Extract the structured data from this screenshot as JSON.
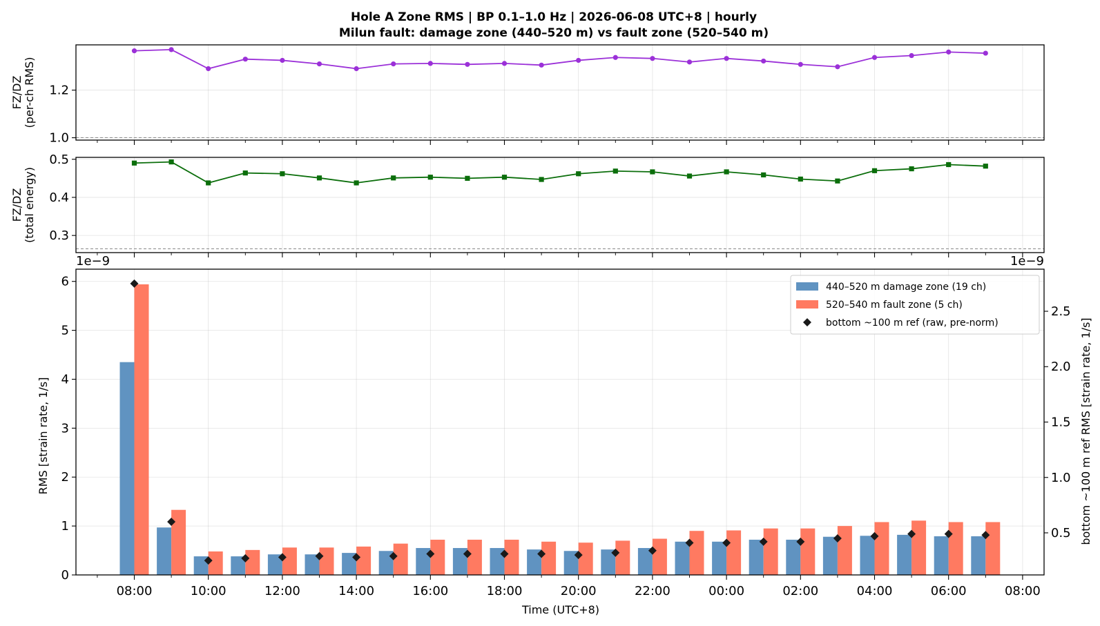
{
  "title_line1": "Hole A Zone RMS  |  BP 0.1–1.0 Hz  |  2026-06-08 UTC+8  |  hourly",
  "title_line2": "Milun fault: damage zone (440–520 m) vs fault zone (520–540 m)",
  "colors": {
    "damage": "#6093c1",
    "fault": "#ff7a61",
    "ref": "#1a1a1a",
    "ratio_rms": "#9b30d8",
    "ratio_energy": "#0b6e0b"
  },
  "chart_data": [
    {
      "type": "line",
      "id": "ratio-rms",
      "ylabel": [
        "FZ/DZ",
        "(per-ch RMS)"
      ],
      "yticks": [
        1.0,
        1.2
      ],
      "ylim": [
        0.99,
        1.39
      ],
      "reference_line": 1.0,
      "grid": true,
      "x": [
        "08:00",
        "09:00",
        "10:00",
        "11:00",
        "12:00",
        "13:00",
        "14:00",
        "15:00",
        "16:00",
        "17:00",
        "18:00",
        "19:00",
        "20:00",
        "21:00",
        "22:00",
        "23:00",
        "00:00",
        "01:00",
        "02:00",
        "03:00",
        "04:00",
        "05:00",
        "06:00",
        "07:00"
      ],
      "values": [
        1.365,
        1.37,
        1.29,
        1.33,
        1.325,
        1.31,
        1.29,
        1.31,
        1.312,
        1.308,
        1.312,
        1.305,
        1.325,
        1.337,
        1.333,
        1.318,
        1.333,
        1.322,
        1.308,
        1.298,
        1.337,
        1.345,
        1.36,
        1.355
      ]
    },
    {
      "type": "line",
      "id": "ratio-energy",
      "ylabel": [
        "FZ/DZ",
        "(total energy)"
      ],
      "yticks": [
        0.3,
        0.4,
        0.5
      ],
      "ylim": [
        0.255,
        0.505
      ],
      "reference_line": 0.265,
      "grid": true,
      "values": [
        0.49,
        0.493,
        0.438,
        0.464,
        0.462,
        0.451,
        0.438,
        0.451,
        0.453,
        0.45,
        0.453,
        0.447,
        0.462,
        0.469,
        0.467,
        0.456,
        0.467,
        0.459,
        0.448,
        0.443,
        0.47,
        0.475,
        0.486,
        0.482
      ]
    },
    {
      "type": "bar",
      "id": "zone-rms",
      "categories": [
        "08:00",
        "09:00",
        "10:00",
        "11:00",
        "12:00",
        "13:00",
        "14:00",
        "15:00",
        "16:00",
        "17:00",
        "18:00",
        "19:00",
        "20:00",
        "21:00",
        "22:00",
        "23:00",
        "00:00",
        "01:00",
        "02:00",
        "03:00",
        "04:00",
        "05:00",
        "06:00",
        "07:00"
      ],
      "xtick_labels": [
        "08:00",
        "10:00",
        "12:00",
        "14:00",
        "16:00",
        "18:00",
        "20:00",
        "22:00",
        "00:00",
        "02:00",
        "04:00",
        "06:00",
        "08:00"
      ],
      "xlabel": "Time (UTC+8)",
      "ylabel": "RMS  [strain rate, 1/s]",
      "ylabel_right": "bottom ~100 m ref RMS  [strain rate, 1/s]",
      "offset_left": "1e−9",
      "offset_right": "1e−9",
      "ylim": [
        0,
        6.25
      ],
      "yticks": [
        0,
        1,
        2,
        3,
        4,
        5,
        6
      ],
      "ylim_right": [
        0.12,
        2.88
      ],
      "yticks_right": [
        0.5,
        1.0,
        1.5,
        2.0,
        2.5
      ],
      "legend_position": "top-right",
      "grid": true,
      "series": [
        {
          "name": "440–520 m  damage zone (19 ch)",
          "kind": "bar",
          "values": [
            4.35,
            0.97,
            0.38,
            0.38,
            0.42,
            0.42,
            0.45,
            0.49,
            0.55,
            0.55,
            0.55,
            0.52,
            0.49,
            0.52,
            0.55,
            0.68,
            0.68,
            0.72,
            0.72,
            0.78,
            0.8,
            0.82,
            0.79,
            0.79
          ]
        },
        {
          "name": "520–540 m  fault zone (5 ch)",
          "kind": "bar",
          "values": [
            5.94,
            1.33,
            0.48,
            0.51,
            0.56,
            0.56,
            0.58,
            0.64,
            0.72,
            0.72,
            0.72,
            0.68,
            0.66,
            0.7,
            0.74,
            0.9,
            0.91,
            0.95,
            0.95,
            1.0,
            1.08,
            1.11,
            1.08,
            1.08
          ]
        },
        {
          "name": "bottom ~100 m ref (raw, pre-norm)",
          "kind": "marker",
          "axis": "right",
          "values": [
            2.75,
            0.6,
            0.25,
            0.27,
            0.28,
            0.29,
            0.28,
            0.29,
            0.31,
            0.31,
            0.31,
            0.31,
            0.3,
            0.32,
            0.34,
            0.41,
            0.41,
            0.42,
            0.42,
            0.45,
            0.47,
            0.49,
            0.49,
            0.48
          ]
        }
      ]
    }
  ]
}
